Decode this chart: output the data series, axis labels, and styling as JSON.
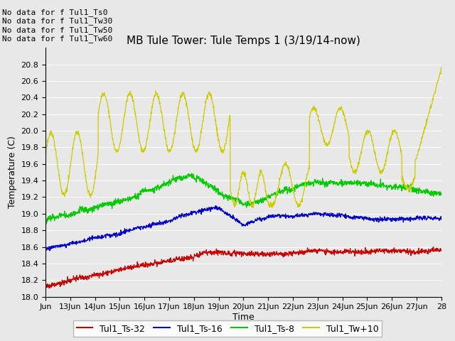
{
  "title": "MB Tule Tower: Tule Temps 1 (3/19/14-now)",
  "xlabel": "Time",
  "ylabel": "Temperature (C)",
  "ylim": [
    18.0,
    21.0
  ],
  "ytick_top": 21.0,
  "yticks": [
    18.0,
    18.2,
    18.4,
    18.6,
    18.8,
    19.0,
    19.2,
    19.4,
    19.6,
    19.8,
    20.0,
    20.2,
    20.4,
    20.6,
    20.8
  ],
  "xtick_labels": [
    "Jun",
    "13Jun",
    "14Jun",
    "15Jun",
    "16Jun",
    "17Jun",
    "18Jun",
    "19Jun",
    "20Jun",
    "21Jun",
    "22Jun",
    "23Jun",
    "24Jun",
    "25Jun",
    "26Jun",
    "27Jun",
    "28"
  ],
  "no_data_lines": [
    "No data for f Tul1_Ts0",
    "No data for f Tul1_Tw30",
    "No data for f Tul1_Tw50",
    "No data for f Tul1_Tw60"
  ],
  "legend_labels": [
    "Tul1_Ts-32",
    "Tul1_Ts-16",
    "Tul1_Ts-8",
    "Tul1_Tw+10"
  ],
  "line_colors": [
    "#cc0000",
    "#0000cc",
    "#00cc00",
    "#cccc00"
  ],
  "bg_color": "#e8e8e8",
  "grid_color": "#ffffff",
  "title_fontsize": 11,
  "axis_label_fontsize": 9,
  "tick_fontsize": 8,
  "legend_fontsize": 9,
  "nodata_fontsize": 8,
  "n_points": 1500
}
